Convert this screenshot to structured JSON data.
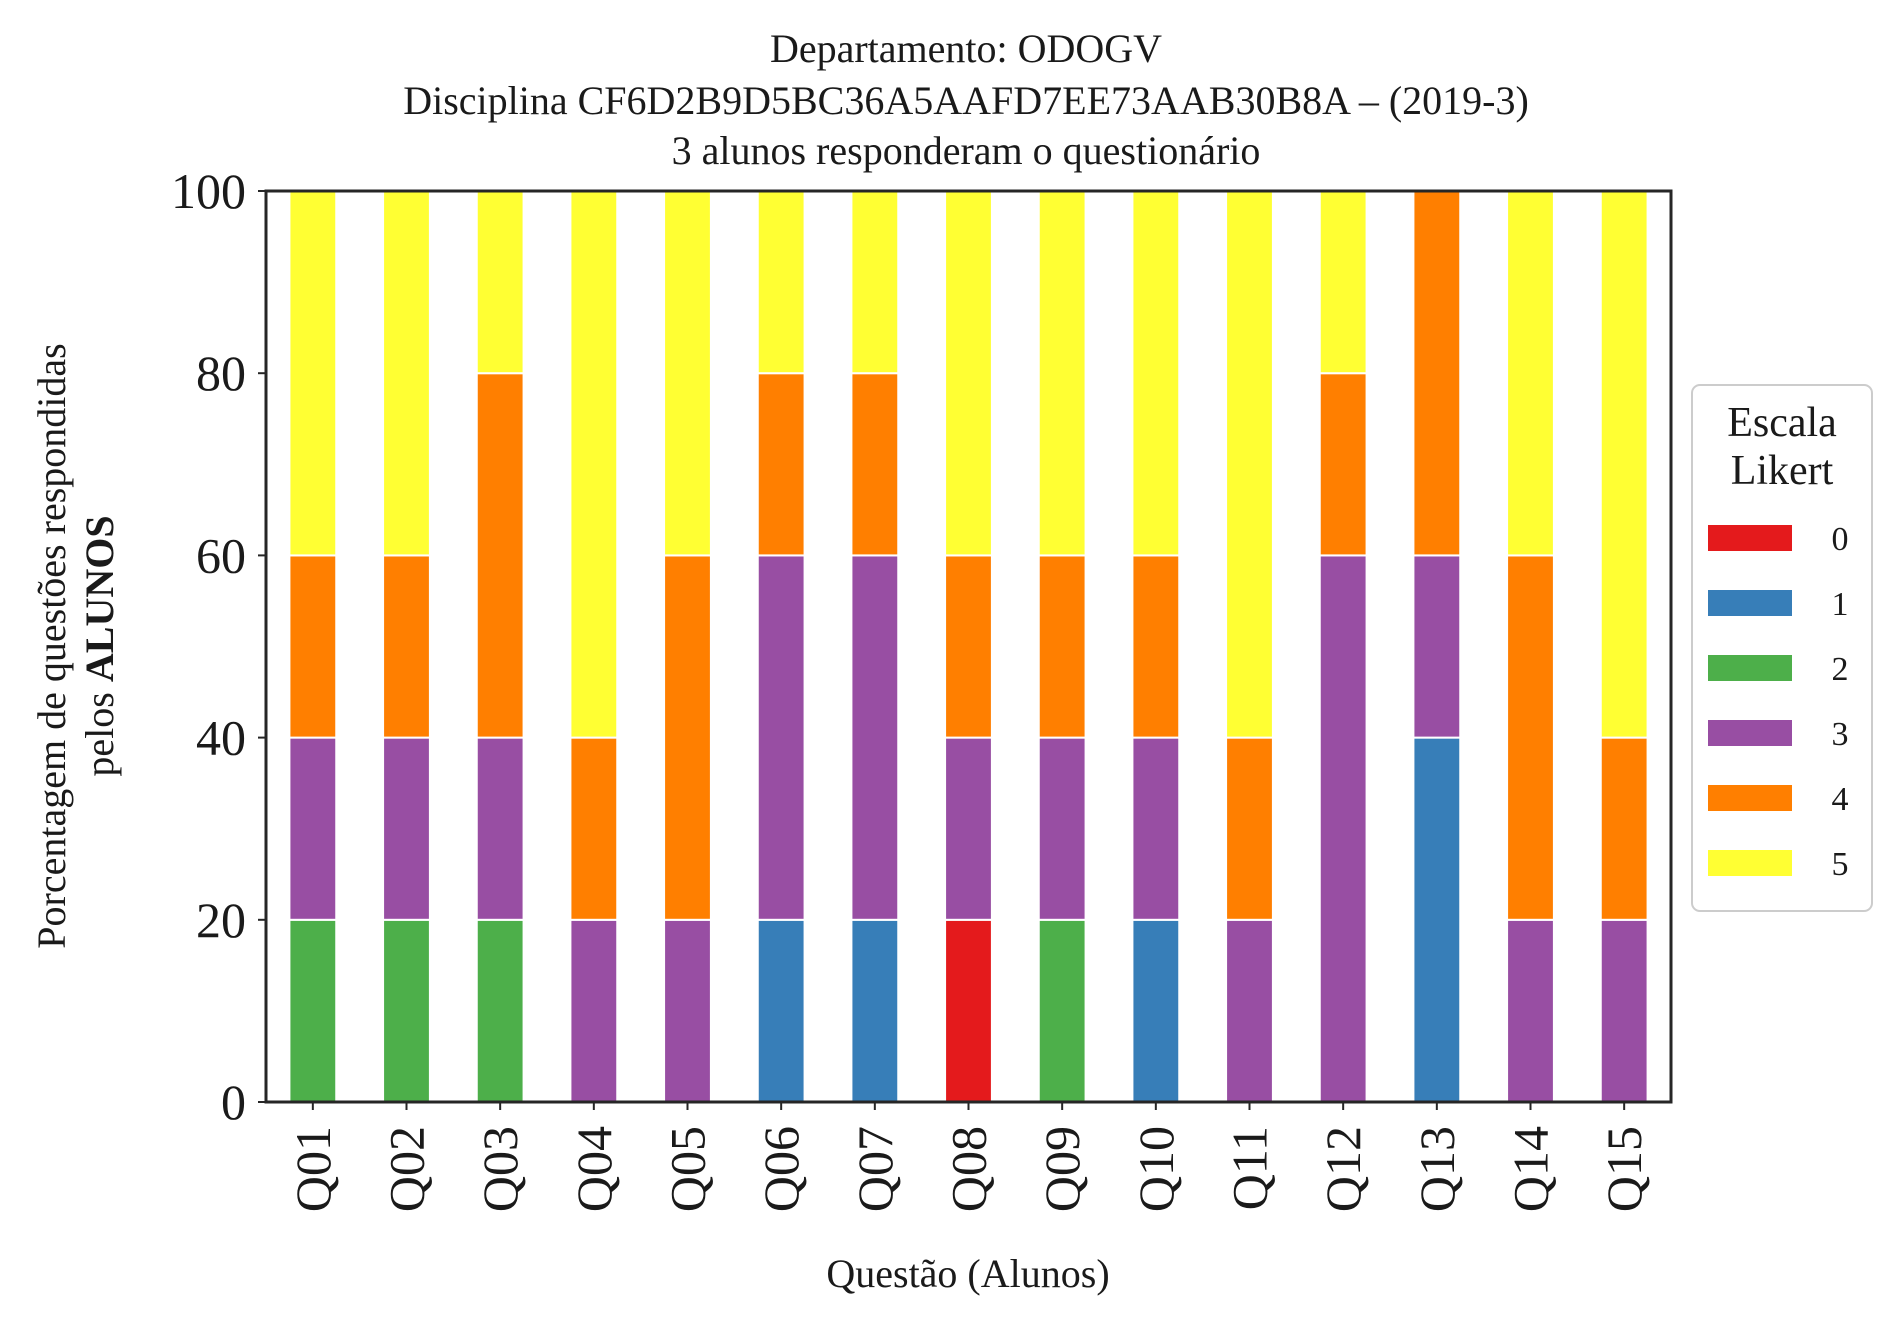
{
  "chart_data": {
    "type": "bar",
    "stacked": true,
    "title_lines": [
      "Departamento: ODOGV",
      "Disciplina CF6D2B9D5BC36A5AAFD7EE73AAB30B8A – (2019-3)",
      "3 alunos responderam o questionário"
    ],
    "xlabel": "Questão (Alunos)",
    "ylabel_line1": "Porcentagem de questões respondidas",
    "ylabel_line2_prefix": "pelos ",
    "ylabel_line2_bold": "ALUNOS",
    "ylim": [
      0,
      100
    ],
    "yticks": [
      "0",
      "20",
      "40",
      "60",
      "80",
      "100"
    ],
    "grid": false,
    "legend_placement": "right",
    "legend_title_lines": [
      "Escala",
      "Likert"
    ],
    "categories": [
      "Q01",
      "Q02",
      "Q03",
      "Q04",
      "Q05",
      "Q06",
      "Q07",
      "Q08",
      "Q09",
      "Q10",
      "Q11",
      "Q12",
      "Q13",
      "Q14",
      "Q15"
    ],
    "series": [
      {
        "name": "0",
        "color": "#e41a1c",
        "values": [
          0,
          0,
          0,
          0,
          0,
          0,
          0,
          20,
          0,
          0,
          0,
          0,
          0,
          0,
          0
        ]
      },
      {
        "name": "1",
        "color": "#377eb8",
        "values": [
          0,
          0,
          0,
          0,
          0,
          20,
          20,
          0,
          0,
          20,
          0,
          0,
          40,
          0,
          0
        ]
      },
      {
        "name": "2",
        "color": "#4daf4a",
        "values": [
          20,
          20,
          20,
          0,
          0,
          0,
          0,
          0,
          20,
          0,
          0,
          0,
          0,
          0,
          0
        ]
      },
      {
        "name": "3",
        "color": "#984ea3",
        "values": [
          20,
          20,
          20,
          20,
          20,
          40,
          40,
          20,
          20,
          20,
          20,
          60,
          20,
          20,
          20
        ]
      },
      {
        "name": "4",
        "color": "#ff7f00",
        "values": [
          20,
          20,
          40,
          20,
          40,
          20,
          20,
          20,
          20,
          20,
          20,
          20,
          40,
          40,
          20
        ]
      },
      {
        "name": "5",
        "color": "#ffff33",
        "values": [
          40,
          40,
          20,
          60,
          40,
          20,
          20,
          40,
          40,
          40,
          60,
          20,
          0,
          40,
          60
        ]
      }
    ]
  }
}
